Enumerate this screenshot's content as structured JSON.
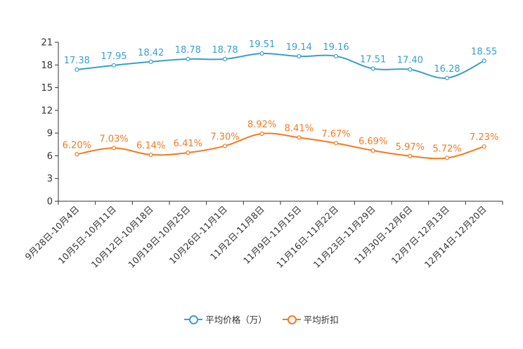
{
  "chart_data": {
    "type": "line",
    "categories": [
      "9月28日-10月4日",
      "10月5日-10月11日",
      "10月12日-10月18日",
      "10月19日-10月25日",
      "10月26日-11月1日",
      "11月2日-11月8日",
      "11月9日-11月15日",
      "11月16日-11月22日",
      "11月23日-11月29日",
      "11月30日-12月6日",
      "12月7日-12月13日",
      "12月14日-12月20日"
    ],
    "y_ticks": [
      "0",
      "3",
      "6",
      "9",
      "12",
      "15",
      "18",
      "21"
    ],
    "ylim": [
      0,
      21
    ],
    "series": [
      {
        "name": "平均价格（万）",
        "color": "#3a9fcf",
        "values": [
          17.38,
          17.95,
          18.42,
          18.78,
          18.78,
          19.51,
          19.14,
          19.16,
          17.51,
          17.4,
          16.28,
          18.55
        ],
        "labels": [
          "17.38",
          "17.95",
          "18.42",
          "18.78",
          "18.78",
          "19.51",
          "19.14",
          "19.16",
          "17.51",
          "17.40",
          "16.28",
          "18.55"
        ]
      },
      {
        "name": "平均折扣",
        "color": "#f47a20",
        "values": [
          6.2,
          7.03,
          6.14,
          6.41,
          7.3,
          8.92,
          8.41,
          7.67,
          6.69,
          5.97,
          5.72,
          7.23
        ],
        "labels": [
          "6.20%",
          "7.03%",
          "6.14%",
          "6.41%",
          "7.30%",
          "8.92%",
          "8.41%",
          "7.67%",
          "6.69%",
          "5.97%",
          "5.72%",
          "7.23%"
        ]
      }
    ],
    "legend": "bottom-center"
  }
}
